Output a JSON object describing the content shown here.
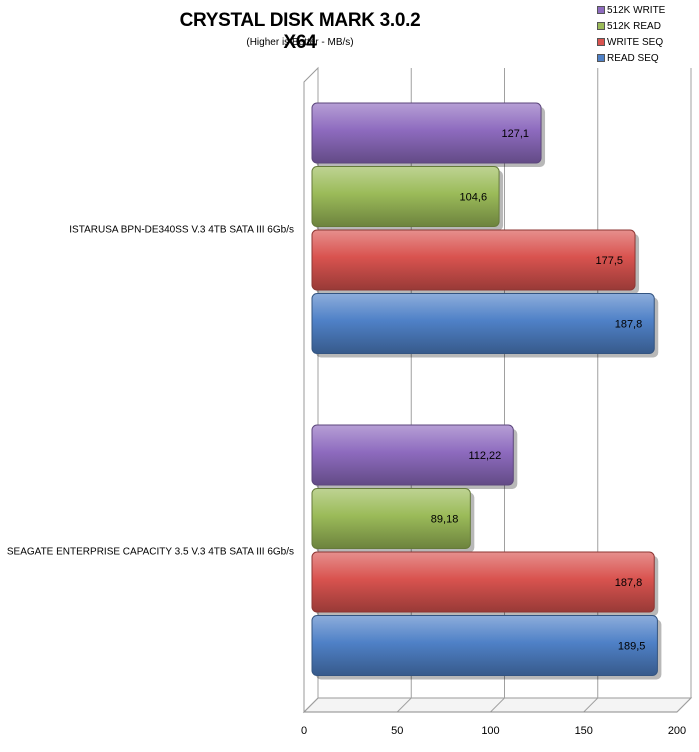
{
  "chart_data": {
    "type": "bar",
    "orientation": "horizontal",
    "title": "CRYSTAL DISK MARK 3.0.2 X64",
    "subtitle": "(Higher is Better - MB/s)",
    "categories": [
      "ISTARUSA BPN-DE340SS V.3 4TB SATA III 6Gb/s",
      "SEAGATE ENTERPRISE CAPACITY 3.5 V.3 4TB SATA III 6Gb/s"
    ],
    "series": [
      {
        "name": "512K WRITE",
        "color": "#8e6bbf",
        "values": [
          127.1,
          112.22
        ],
        "labels": [
          "127,1",
          "112,22"
        ]
      },
      {
        "name": "512K READ",
        "color": "#9bbb59",
        "values": [
          104.6,
          89.18
        ],
        "labels": [
          "104,6",
          "89,18"
        ]
      },
      {
        "name": "WRITE SEQ",
        "color": "#d9534f",
        "values": [
          177.5,
          187.8
        ],
        "labels": [
          "177,5",
          "187,8"
        ]
      },
      {
        "name": "READ SEQ",
        "color": "#4f81c7",
        "values": [
          187.8,
          189.5
        ],
        "labels": [
          "187,8",
          "189,5"
        ]
      }
    ],
    "xlim": [
      0,
      200
    ],
    "xticks": [
      "0",
      "50",
      "100",
      "150",
      "200"
    ],
    "grid": true,
    "legend_position": "top-right"
  }
}
